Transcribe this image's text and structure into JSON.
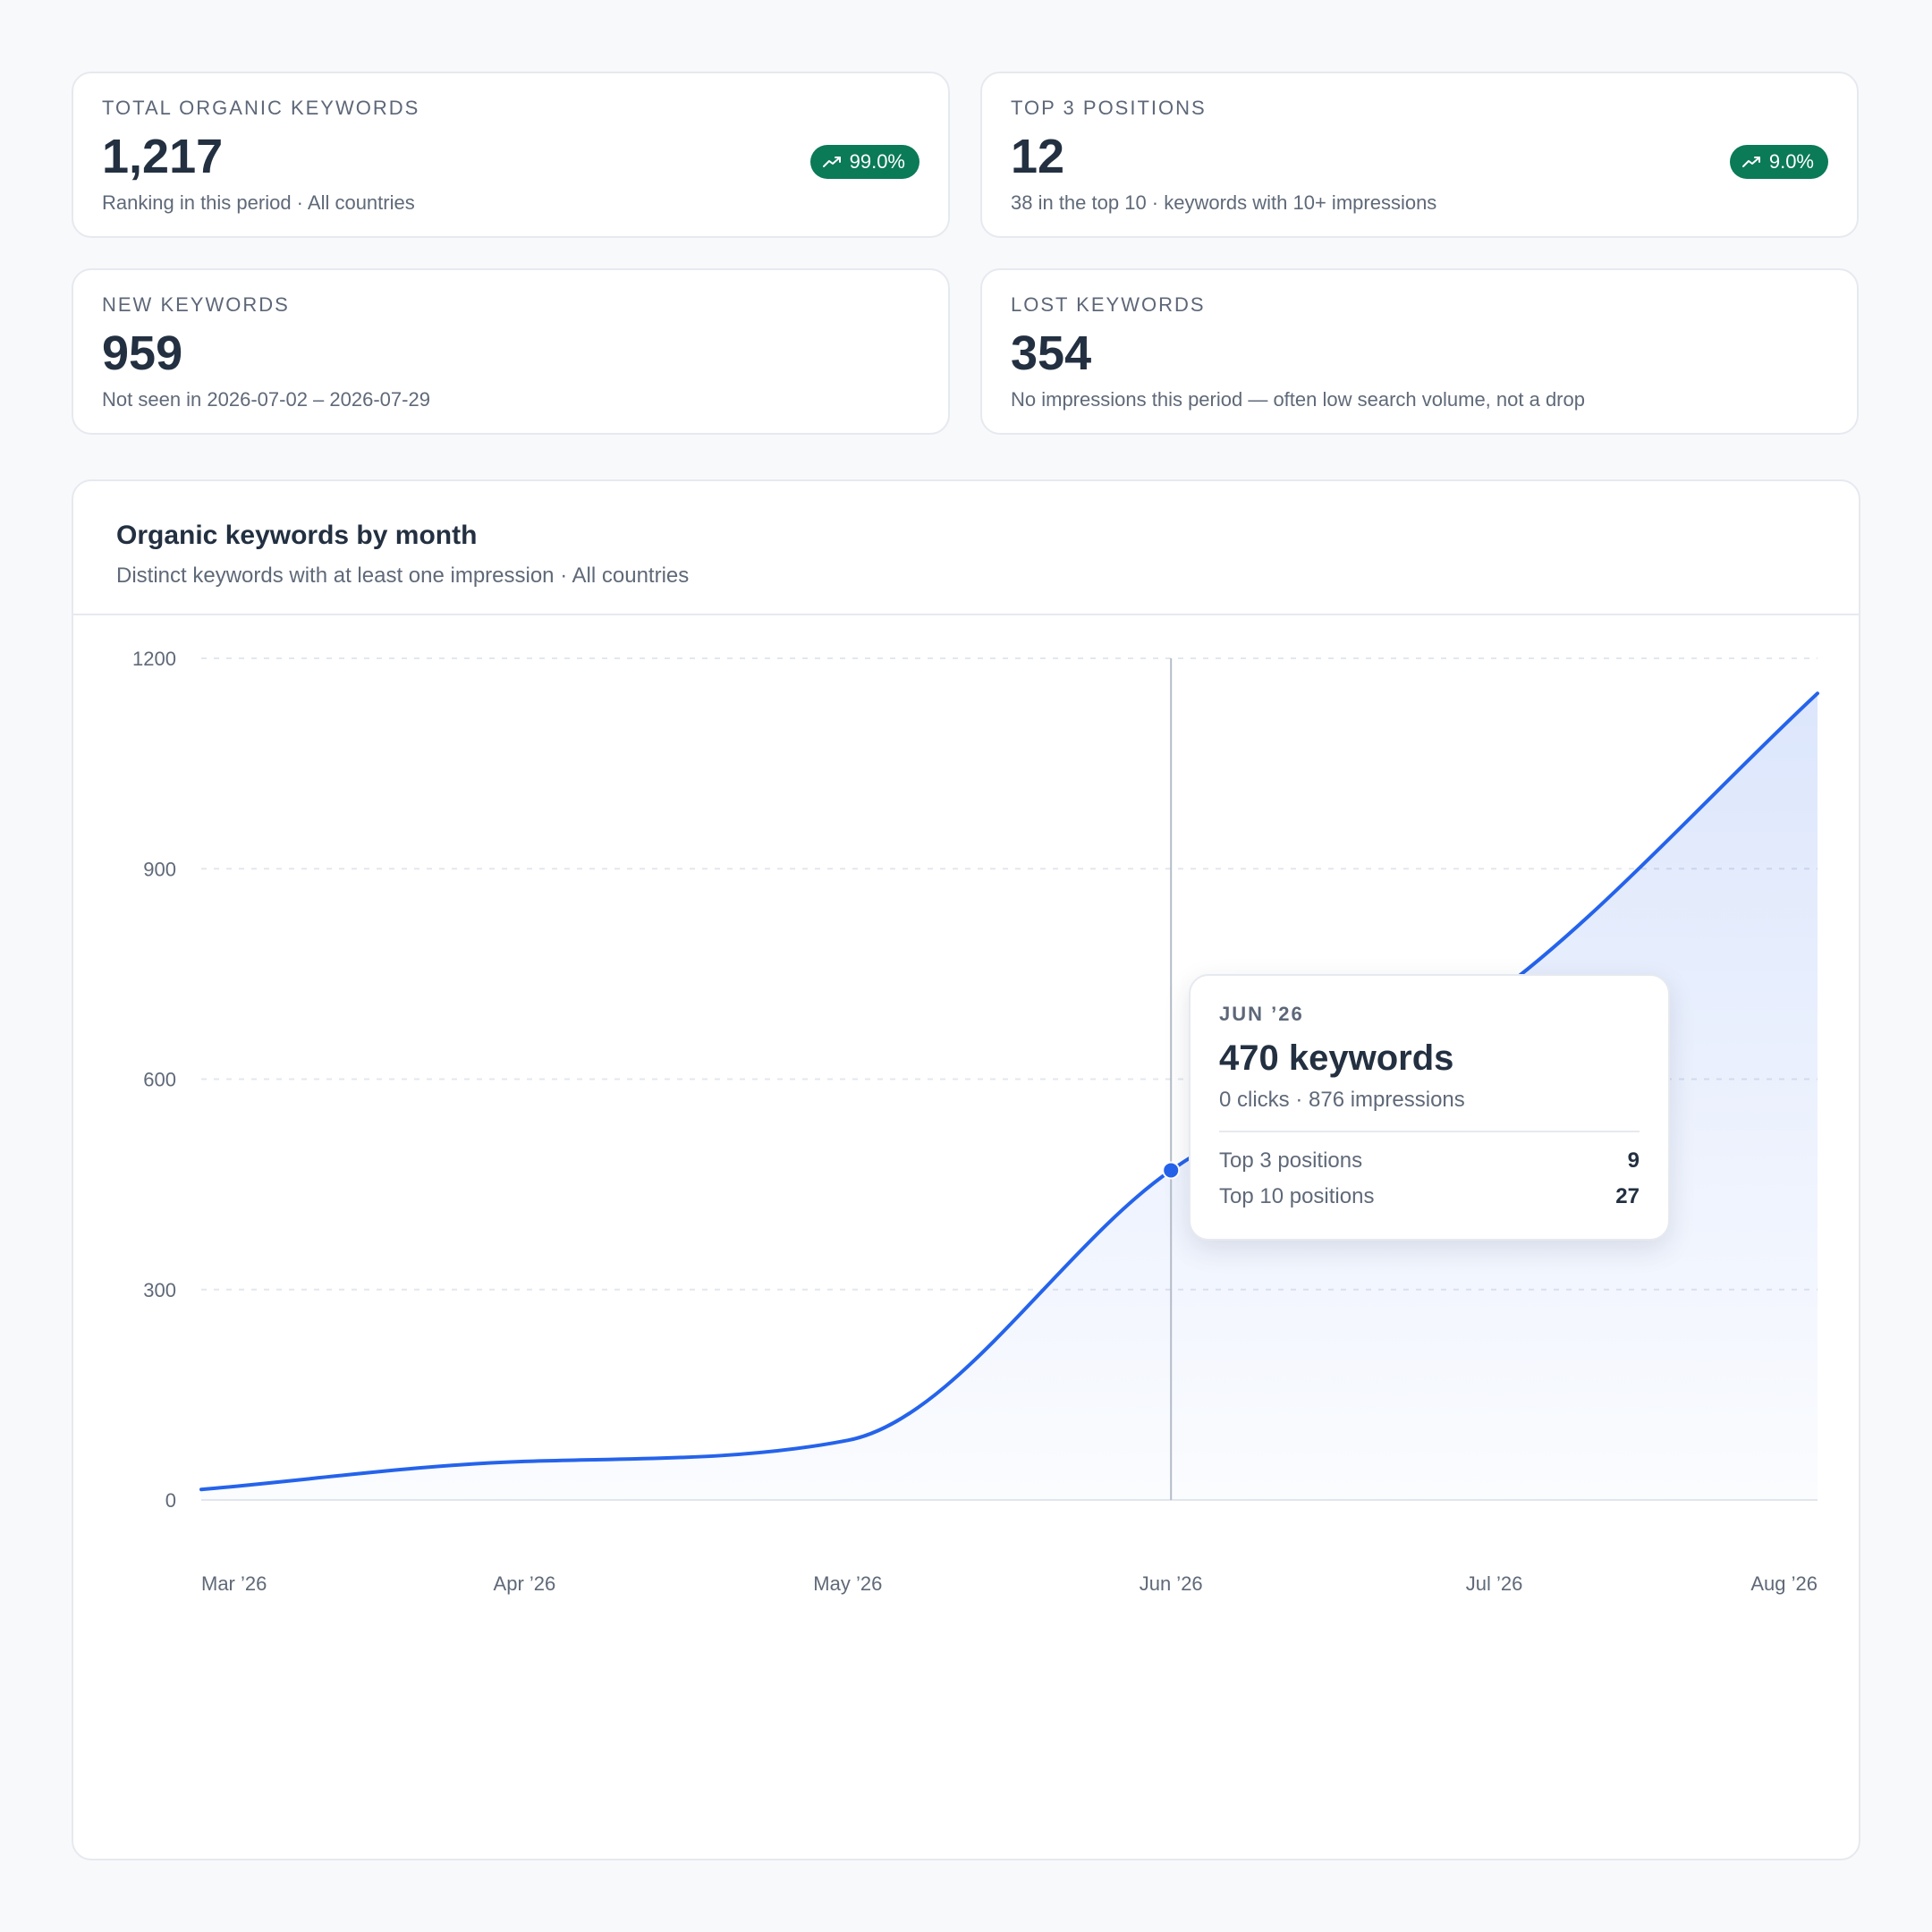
{
  "stats": [
    {
      "label": "TOTAL ORGANIC KEYWORDS",
      "value": "1,217",
      "description": "Ranking in this period · All countries",
      "badge": "99.0%"
    },
    {
      "label": "TOP 3 POSITIONS",
      "value": "12",
      "description": "38 in the top 10 · keywords with 10+ impressions",
      "badge": "9.0%"
    },
    {
      "label": "NEW KEYWORDS",
      "value": "959",
      "description": "Not seen in 2026-07-02 – 2026-07-29"
    },
    {
      "label": "LOST KEYWORDS",
      "value": "354",
      "description": "No impressions this period — often low search volume, not a drop"
    }
  ],
  "chart": {
    "title": "Organic keywords by month",
    "subtitle": "Distinct keywords with at least one impression · All countries"
  },
  "colors": {
    "line": "#2563eb",
    "badge": "#0b7a57"
  },
  "chart_data": {
    "type": "area",
    "categories": [
      "Mar ’26",
      "Apr ’26",
      "May ’26",
      "Jun ’26",
      "Jul ’26",
      "Aug ’26"
    ],
    "values": [
      15,
      55,
      85,
      470,
      720,
      1150
    ],
    "yticks": [
      0,
      300,
      600,
      900,
      1200
    ],
    "ylim": [
      0,
      1200
    ],
    "grid": true,
    "highlight_index": 3
  },
  "tooltip": {
    "month": "JUN ’26",
    "keywords": "470 keywords",
    "details": "0 clicks · 876 impressions",
    "rows": [
      {
        "label": "Top 3 positions",
        "value": "9"
      },
      {
        "label": "Top 10 positions",
        "value": "27"
      }
    ]
  }
}
